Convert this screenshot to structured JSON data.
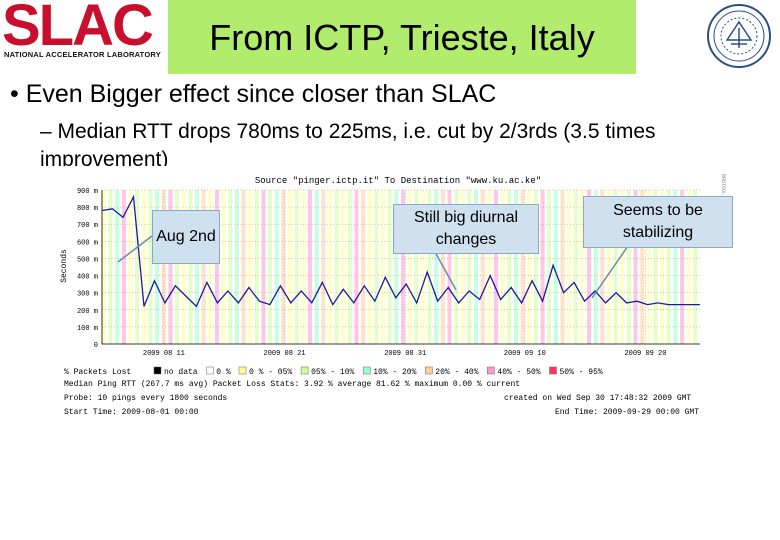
{
  "header": {
    "logo_text": "SLAC",
    "logo_subtitle": "NATIONAL ACCELERATOR LABORATORY",
    "title": "From ICTP, Trieste, Italy"
  },
  "bullets": {
    "b1": "• Even Bigger effect since closer than SLAC",
    "b2": "– Median RTT drops 780ms to 225ms, i.e. cut by 2/3rds (3.5 times improvement)"
  },
  "callouts": {
    "aug": "Aug 2nd",
    "diurnal": "Still big diurnal changes",
    "stabilizing": "Seems to be stabilizing"
  },
  "chart_data": {
    "type": "line",
    "title": "Source \"pinger.ictp.it\" To Destination \"www.ku.ac.ke\"",
    "ylabel": "Seconds",
    "side_label": "RRDTOOL / TOBI OETIKER",
    "ylim": [
      0,
      0.9
    ],
    "y_ticks": [
      "0",
      "100 m",
      "200 m",
      "300 m",
      "400 m",
      "500 m",
      "600 m",
      "700 m",
      "800 m",
      "900 m"
    ],
    "x_ticks": [
      "2009 08 11",
      "2009 08 21",
      "2009 08 31",
      "2009 09 10",
      "2009 09 20"
    ],
    "series": [
      {
        "name": "Median Ping RTT (267.7 ms avg)",
        "x": [
          0,
          1,
          2,
          3,
          4,
          5,
          6,
          7,
          8,
          9,
          10,
          11,
          12,
          13,
          14,
          15,
          16,
          17,
          18,
          19,
          20,
          21,
          22,
          23,
          24,
          25,
          26,
          27,
          28,
          29,
          30,
          31,
          32,
          33,
          34,
          35,
          36,
          37,
          38,
          39,
          40,
          41,
          42,
          43,
          44,
          45,
          46,
          47,
          48,
          49,
          50,
          51,
          52,
          53,
          54,
          55,
          56,
          57
        ],
        "values": [
          0.78,
          0.79,
          0.74,
          0.86,
          0.22,
          0.37,
          0.24,
          0.34,
          0.28,
          0.22,
          0.36,
          0.24,
          0.31,
          0.24,
          0.33,
          0.25,
          0.23,
          0.34,
          0.24,
          0.31,
          0.24,
          0.36,
          0.23,
          0.32,
          0.24,
          0.34,
          0.25,
          0.39,
          0.27,
          0.35,
          0.24,
          0.42,
          0.25,
          0.33,
          0.24,
          0.31,
          0.26,
          0.4,
          0.26,
          0.33,
          0.24,
          0.37,
          0.25,
          0.46,
          0.3,
          0.36,
          0.25,
          0.31,
          0.24,
          0.3,
          0.24,
          0.25,
          0.23,
          0.24,
          0.23,
          0.23,
          0.23,
          0.23
        ]
      }
    ],
    "legend": [
      {
        "label": "no data",
        "color": "#000000"
      },
      {
        "label": "0 %",
        "color": "#ffffff"
      },
      {
        "label": "0 % - 05%",
        "color": "#ffff99"
      },
      {
        "label": "05% - 10%",
        "color": "#ccff99"
      },
      {
        "label": "10% - 20%",
        "color": "#99ffcc"
      },
      {
        "label": "20% - 40%",
        "color": "#ffcc99"
      },
      {
        "label": "40% - 50%",
        "color": "#ff99cc"
      },
      {
        "label": "50% - 95%",
        "color": "#ff3366"
      }
    ],
    "legend_prefix": "% Packets Lost",
    "stats_line": "Median Ping RTT (267.7 ms avg)    Packet Loss Stats: 3.92 % average  81.62 % maximum  0.00 % current",
    "probe_line": "Probe: 10 pings every 1800 seconds",
    "created_line": "created on Wed Sep 30 17:48:32 2009 GMT",
    "start_line": "Start Time: 2009-08-01 00:00",
    "end_line": "End Time: 2009-09-29 00:00 GMT"
  }
}
